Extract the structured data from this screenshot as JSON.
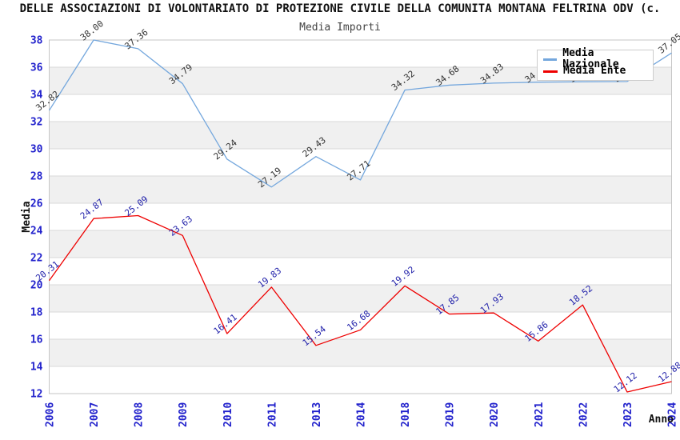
{
  "title": "DELLE ASSOCIAZIONI DI VOLONTARIATO DI PROTEZIONE CIVILE DELLA COMUNITA MONTANA FELTRINA ODV (c.",
  "subtitle": "Media Importi",
  "legend": {
    "items": [
      {
        "label": "Media Nazionale",
        "color": "#74A7DD"
      },
      {
        "label": "Media Ente",
        "color": "#EE0000"
      }
    ]
  },
  "chart_data": {
    "type": "line",
    "title": "Media Importi",
    "categories": [
      "2006",
      "2007",
      "2008",
      "2009",
      "2010",
      "2011",
      "2013",
      "2014",
      "2018",
      "2019",
      "2020",
      "2021",
      "2022",
      "2023",
      "2024"
    ],
    "series": [
      {
        "name": "Media Nazionale",
        "color": "#74A7DD",
        "label_color": "#333333",
        "values": [
          32.82,
          38.0,
          37.36,
          34.79,
          29.24,
          27.19,
          29.43,
          27.71,
          34.32,
          34.68,
          34.83,
          34.9,
          34.93,
          34.95,
          37.05
        ]
      },
      {
        "name": "Media Ente",
        "color": "#EE0000",
        "label_color": "#2222AA",
        "values": [
          20.31,
          24.87,
          25.09,
          23.63,
          16.41,
          19.83,
          15.54,
          16.68,
          19.92,
          17.85,
          17.93,
          15.86,
          18.52,
          12.12,
          12.88
        ]
      }
    ],
    "ylim": [
      12,
      38
    ],
    "ytick_step": 2,
    "xlabel": "Anno",
    "ylabel": "Media",
    "axis_tick_color": "#2222CC",
    "legend_position": "top-right",
    "grid": "horizontal-bands",
    "point_label_format": "2-decimals"
  }
}
